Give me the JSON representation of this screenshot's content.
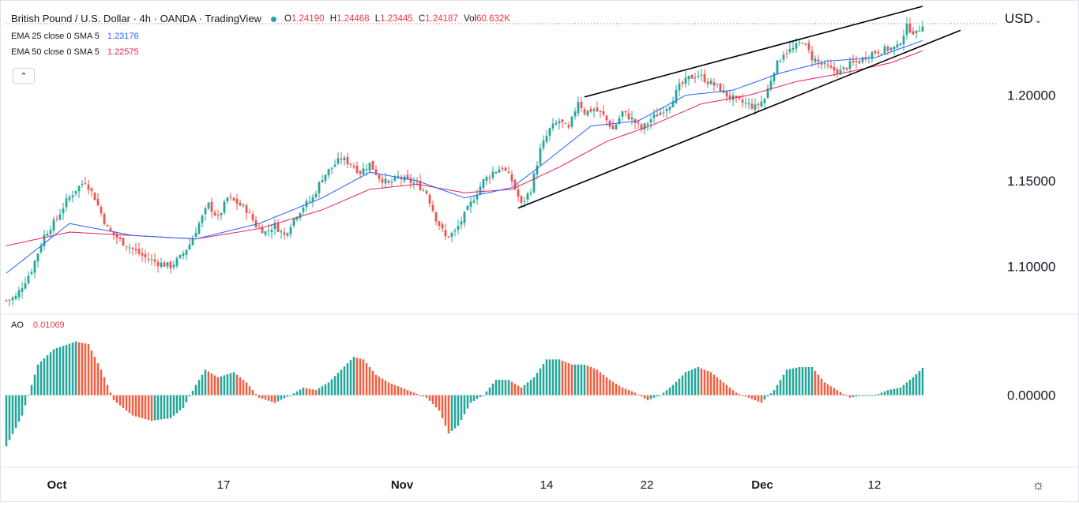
{
  "header": {
    "symbol_title": "British Pound / U.S. Dollar · 4h · OANDA · TradingView",
    "open_label": "O",
    "open_value": "1.24190",
    "high_label": "H",
    "high_value": "1.24468",
    "low_label": "L",
    "low_value": "1.23445",
    "close_label": "C",
    "close_value": "1.24187",
    "volume_label": "Vol",
    "volume_value": "60.632K"
  },
  "indicators": [
    {
      "label": "EMA 25 close 0 SMA 5",
      "value": "1.23176",
      "color": "#2962ff"
    },
    {
      "label": "EMA 50 close 0 SMA 5",
      "value": "1.22575",
      "color": "#e91e63"
    }
  ],
  "collapse_icon": "chevron-up-icon",
  "collapse_glyph": "⌃",
  "currency": {
    "label": "USD",
    "caret": "⌄"
  },
  "ao": {
    "label": "AO",
    "value": "0.01069"
  },
  "settings_icon": "gear-icon",
  "settings_glyph": "☼",
  "colors": {
    "up": "#26a69a",
    "down": "#ef5350",
    "ema25": "#2962ff",
    "ema50": "#e91e63",
    "ao_up": "#26a69a",
    "ao_down": "#f06042",
    "channel": "#000000",
    "grid": "#f0f3fa"
  },
  "chart_data": {
    "type": "candlestick",
    "title": "British Pound / U.S. Dollar · 4h · OANDA · TradingView",
    "timeframe": "4h",
    "x_tick_labels": [
      "Oct",
      "17",
      "Nov",
      "14",
      "22",
      "Dec",
      "12"
    ],
    "y_tick_labels": [
      "1.20000",
      "1.15000",
      "1.10000"
    ],
    "ylim": [
      1.072,
      1.252
    ],
    "last_price": 1.24187,
    "price_path": [
      [
        0,
        1.08
      ],
      [
        3,
        1.082
      ],
      [
        8,
        1.098
      ],
      [
        12,
        1.118
      ],
      [
        16,
        1.128
      ],
      [
        19,
        1.138
      ],
      [
        22,
        1.145
      ],
      [
        25,
        1.15
      ],
      [
        28,
        1.14
      ],
      [
        32,
        1.122
      ],
      [
        36,
        1.115
      ],
      [
        40,
        1.11
      ],
      [
        44,
        1.105
      ],
      [
        48,
        1.102
      ],
      [
        52,
        1.1
      ],
      [
        55,
        1.105
      ],
      [
        58,
        1.113
      ],
      [
        61,
        1.125
      ],
      [
        64,
        1.136
      ],
      [
        67,
        1.128
      ],
      [
        70,
        1.14
      ],
      [
        73,
        1.137
      ],
      [
        76,
        1.133
      ],
      [
        79,
        1.124
      ],
      [
        82,
        1.12
      ],
      [
        85,
        1.124
      ],
      [
        88,
        1.118
      ],
      [
        91,
        1.128
      ],
      [
        94,
        1.135
      ],
      [
        97,
        1.14
      ],
      [
        100,
        1.152
      ],
      [
        103,
        1.158
      ],
      [
        106,
        1.163
      ],
      [
        109,
        1.16
      ],
      [
        112,
        1.155
      ],
      [
        115,
        1.16
      ],
      [
        118,
        1.152
      ],
      [
        121,
        1.148
      ],
      [
        124,
        1.152
      ],
      [
        127,
        1.15
      ],
      [
        130,
        1.148
      ],
      [
        133,
        1.143
      ],
      [
        136,
        1.128
      ],
      [
        139,
        1.117
      ],
      [
        142,
        1.12
      ],
      [
        145,
        1.13
      ],
      [
        148,
        1.14
      ],
      [
        151,
        1.15
      ],
      [
        154,
        1.155
      ],
      [
        157,
        1.158
      ],
      [
        160,
        1.15
      ],
      [
        163,
        1.136
      ],
      [
        166,
        1.145
      ],
      [
        169,
        1.168
      ],
      [
        172,
        1.18
      ],
      [
        175,
        1.185
      ],
      [
        178,
        1.18
      ],
      [
        181,
        1.197
      ],
      [
        183,
        1.19
      ],
      [
        186,
        1.192
      ],
      [
        189,
        1.188
      ],
      [
        192,
        1.18
      ],
      [
        195,
        1.19
      ],
      [
        198,
        1.186
      ],
      [
        201,
        1.18
      ],
      [
        204,
        1.186
      ],
      [
        207,
        1.19
      ],
      [
        210,
        1.195
      ],
      [
        213,
        1.205
      ],
      [
        216,
        1.21
      ],
      [
        219,
        1.212
      ],
      [
        222,
        1.208
      ],
      [
        225,
        1.205
      ],
      [
        228,
        1.2
      ],
      [
        231,
        1.197
      ],
      [
        234,
        1.195
      ],
      [
        237,
        1.193
      ],
      [
        240,
        1.198
      ],
      [
        243,
        1.215
      ],
      [
        246,
        1.225
      ],
      [
        249,
        1.227
      ],
      [
        252,
        1.232
      ],
      [
        255,
        1.222
      ],
      [
        258,
        1.218
      ],
      [
        261,
        1.215
      ],
      [
        264,
        1.214
      ],
      [
        267,
        1.218
      ],
      [
        270,
        1.22
      ],
      [
        273,
        1.224
      ],
      [
        276,
        1.226
      ],
      [
        279,
        1.227
      ],
      [
        282,
        1.228
      ],
      [
        285,
        1.24
      ],
      [
        288,
        1.236
      ],
      [
        290,
        1.242
      ]
    ],
    "ema25_path": [
      [
        0,
        1.096
      ],
      [
        20,
        1.125
      ],
      [
        40,
        1.118
      ],
      [
        60,
        1.116
      ],
      [
        80,
        1.125
      ],
      [
        100,
        1.14
      ],
      [
        115,
        1.155
      ],
      [
        130,
        1.15
      ],
      [
        145,
        1.14
      ],
      [
        160,
        1.146
      ],
      [
        170,
        1.16
      ],
      [
        185,
        1.182
      ],
      [
        200,
        1.185
      ],
      [
        215,
        1.2
      ],
      [
        230,
        1.203
      ],
      [
        245,
        1.213
      ],
      [
        260,
        1.22
      ],
      [
        275,
        1.222
      ],
      [
        290,
        1.232
      ]
    ],
    "ema50_path": [
      [
        0,
        1.112
      ],
      [
        20,
        1.12
      ],
      [
        40,
        1.118
      ],
      [
        60,
        1.116
      ],
      [
        80,
        1.122
      ],
      [
        100,
        1.133
      ],
      [
        115,
        1.145
      ],
      [
        130,
        1.148
      ],
      [
        145,
        1.143
      ],
      [
        160,
        1.145
      ],
      [
        175,
        1.158
      ],
      [
        190,
        1.173
      ],
      [
        205,
        1.183
      ],
      [
        220,
        1.195
      ],
      [
        235,
        1.2
      ],
      [
        250,
        1.208
      ],
      [
        265,
        1.213
      ],
      [
        280,
        1.219
      ],
      [
        290,
        1.226
      ]
    ],
    "ao_path": [
      [
        0,
        -0.02
      ],
      [
        5,
        -0.008
      ],
      [
        10,
        0.012
      ],
      [
        15,
        0.018
      ],
      [
        22,
        0.021
      ],
      [
        26,
        0.02
      ],
      [
        30,
        0.01
      ],
      [
        34,
        -0.002
      ],
      [
        40,
        -0.008
      ],
      [
        46,
        -0.01
      ],
      [
        52,
        -0.009
      ],
      [
        56,
        -0.005
      ],
      [
        60,
        0.004
      ],
      [
        63,
        0.01
      ],
      [
        67,
        0.007
      ],
      [
        72,
        0.009
      ],
      [
        76,
        0.005
      ],
      [
        80,
        -0.001
      ],
      [
        85,
        -0.003
      ],
      [
        90,
        0.0
      ],
      [
        94,
        0.003
      ],
      [
        98,
        0.002
      ],
      [
        102,
        0.005
      ],
      [
        106,
        0.01
      ],
      [
        110,
        0.015
      ],
      [
        113,
        0.014
      ],
      [
        117,
        0.008
      ],
      [
        121,
        0.005
      ],
      [
        125,
        0.003
      ],
      [
        129,
        0.001
      ],
      [
        133,
        -0.001
      ],
      [
        137,
        -0.006
      ],
      [
        140,
        -0.015
      ],
      [
        143,
        -0.012
      ],
      [
        147,
        -0.003
      ],
      [
        151,
        0.0
      ],
      [
        155,
        0.006
      ],
      [
        159,
        0.006
      ],
      [
        163,
        0.003
      ],
      [
        167,
        0.007
      ],
      [
        171,
        0.014
      ],
      [
        175,
        0.014
      ],
      [
        179,
        0.012
      ],
      [
        183,
        0.012
      ],
      [
        187,
        0.01
      ],
      [
        191,
        0.006
      ],
      [
        195,
        0.003
      ],
      [
        199,
        0.001
      ],
      [
        203,
        -0.002
      ],
      [
        207,
        0.0
      ],
      [
        211,
        0.004
      ],
      [
        215,
        0.009
      ],
      [
        219,
        0.011
      ],
      [
        223,
        0.009
      ],
      [
        227,
        0.005
      ],
      [
        231,
        0.001
      ],
      [
        235,
        -0.001
      ],
      [
        239,
        -0.003
      ],
      [
        243,
        0.002
      ],
      [
        247,
        0.01
      ],
      [
        251,
        0.011
      ],
      [
        255,
        0.011
      ],
      [
        259,
        0.005
      ],
      [
        263,
        0.002
      ],
      [
        267,
        -0.001
      ],
      [
        271,
        0.0
      ],
      [
        275,
        0.0
      ],
      [
        279,
        0.002
      ],
      [
        283,
        0.003
      ],
      [
        287,
        0.007
      ],
      [
        290,
        0.0107
      ]
    ],
    "ao_ylim": [
      -0.027,
      0.028
    ],
    "ao_zero_label": "0.00000",
    "channel_upper": [
      [
        183,
        1.199
      ],
      [
        290,
        1.252
      ]
    ],
    "channel_lower": [
      [
        162,
        1.134
      ],
      [
        302,
        1.238
      ]
    ],
    "grid": false,
    "legend": "top-left"
  }
}
